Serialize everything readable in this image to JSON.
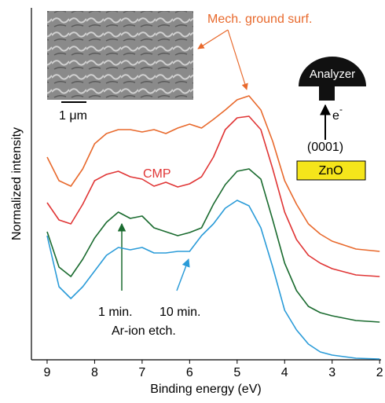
{
  "chart_data": {
    "type": "line",
    "x_label": "Binding energy (eV)",
    "y_label": "Normalized intensity",
    "xlim": [
      9.33,
      1.97
    ],
    "ylim": [
      0,
      448
    ],
    "xticks": [
      9,
      8,
      7,
      6,
      5,
      4,
      3,
      2
    ],
    "x": [
      9,
      8.75,
      8.5,
      8.25,
      8,
      7.75,
      7.5,
      7.25,
      7,
      6.75,
      6.5,
      6.25,
      6,
      5.75,
      5.5,
      5.25,
      5,
      4.75,
      4.5,
      4.25,
      4,
      3.75,
      3.5,
      3.25,
      3,
      2.5,
      2
    ],
    "series": [
      {
        "name": "Mech. ground surf.",
        "color": "#e8692c",
        "values": [
          258,
          228,
          221,
          243,
          275,
          288,
          293,
          293,
          290,
          293,
          288,
          295,
          300,
          295,
          306,
          318,
          331,
          336,
          318,
          278,
          228,
          198,
          173,
          160,
          151,
          141,
          138
        ]
      },
      {
        "name": "CMP",
        "color": "#e03535",
        "values": [
          200,
          178,
          173,
          198,
          228,
          236,
          240,
          233,
          230,
          221,
          226,
          220,
          224,
          233,
          258,
          293,
          308,
          310,
          293,
          243,
          188,
          153,
          133,
          123,
          116,
          108,
          106
        ]
      },
      {
        "name": "1 min.",
        "color": "#1a6b2f",
        "values": [
          163,
          118,
          106,
          128,
          155,
          175,
          188,
          180,
          183,
          168,
          163,
          158,
          162,
          168,
          198,
          223,
          240,
          243,
          230,
          178,
          123,
          88,
          68,
          60,
          56,
          50,
          48
        ]
      },
      {
        "name": "10 min.",
        "color": "#2a9bd8",
        "values": [
          158,
          93,
          78,
          93,
          113,
          133,
          143,
          140,
          143,
          136,
          136,
          138,
          138,
          158,
          173,
          193,
          203,
          196,
          168,
          118,
          63,
          38,
          20,
          10,
          6,
          2,
          1
        ]
      }
    ],
    "annotations": {
      "etch": "Ar-ion etch.",
      "scale": "1 μm",
      "analyzer": "Analyzer",
      "electron": "e",
      "charge": "-",
      "face": "(0001)",
      "sample": "ZnO"
    }
  }
}
